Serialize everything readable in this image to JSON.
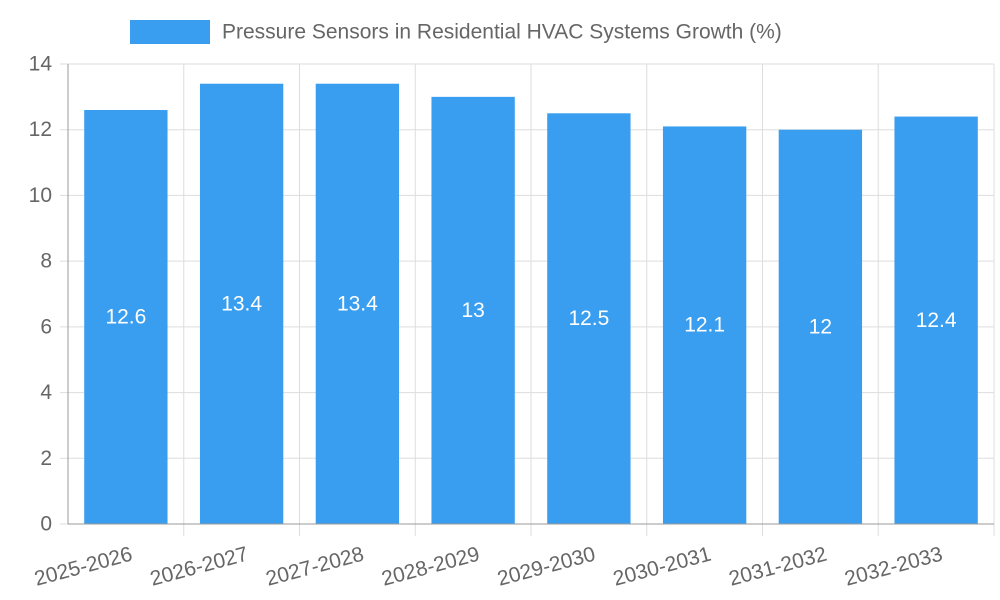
{
  "chart_data": {
    "type": "bar",
    "title": "",
    "xlabel": "",
    "ylabel": "",
    "legend": {
      "label": "Pressure Sensors in Residential HVAC Systems Growth (%)",
      "position": "top-center"
    },
    "categories": [
      "2025-2026",
      "2026-2027",
      "2027-2028",
      "2028-2029",
      "2029-2030",
      "2030-2031",
      "2031-2032",
      "2032-2033"
    ],
    "values": [
      12.6,
      13.4,
      13.4,
      13,
      12.5,
      12.1,
      12,
      12.4
    ],
    "data_labels": [
      "12.6",
      "13.4",
      "13.4",
      "13",
      "12.5",
      "12.1",
      "12",
      "12.4"
    ],
    "ylim": [
      0,
      14
    ],
    "yticks": [
      "0",
      "2",
      "4",
      "6",
      "8",
      "10",
      "12",
      "14"
    ],
    "grid": true,
    "colors": {
      "bar": "#3a9ef0",
      "grid": "#dddddd",
      "axis": "#999999",
      "tick_text": "#666666",
      "label_text": "#ffffff"
    }
  }
}
